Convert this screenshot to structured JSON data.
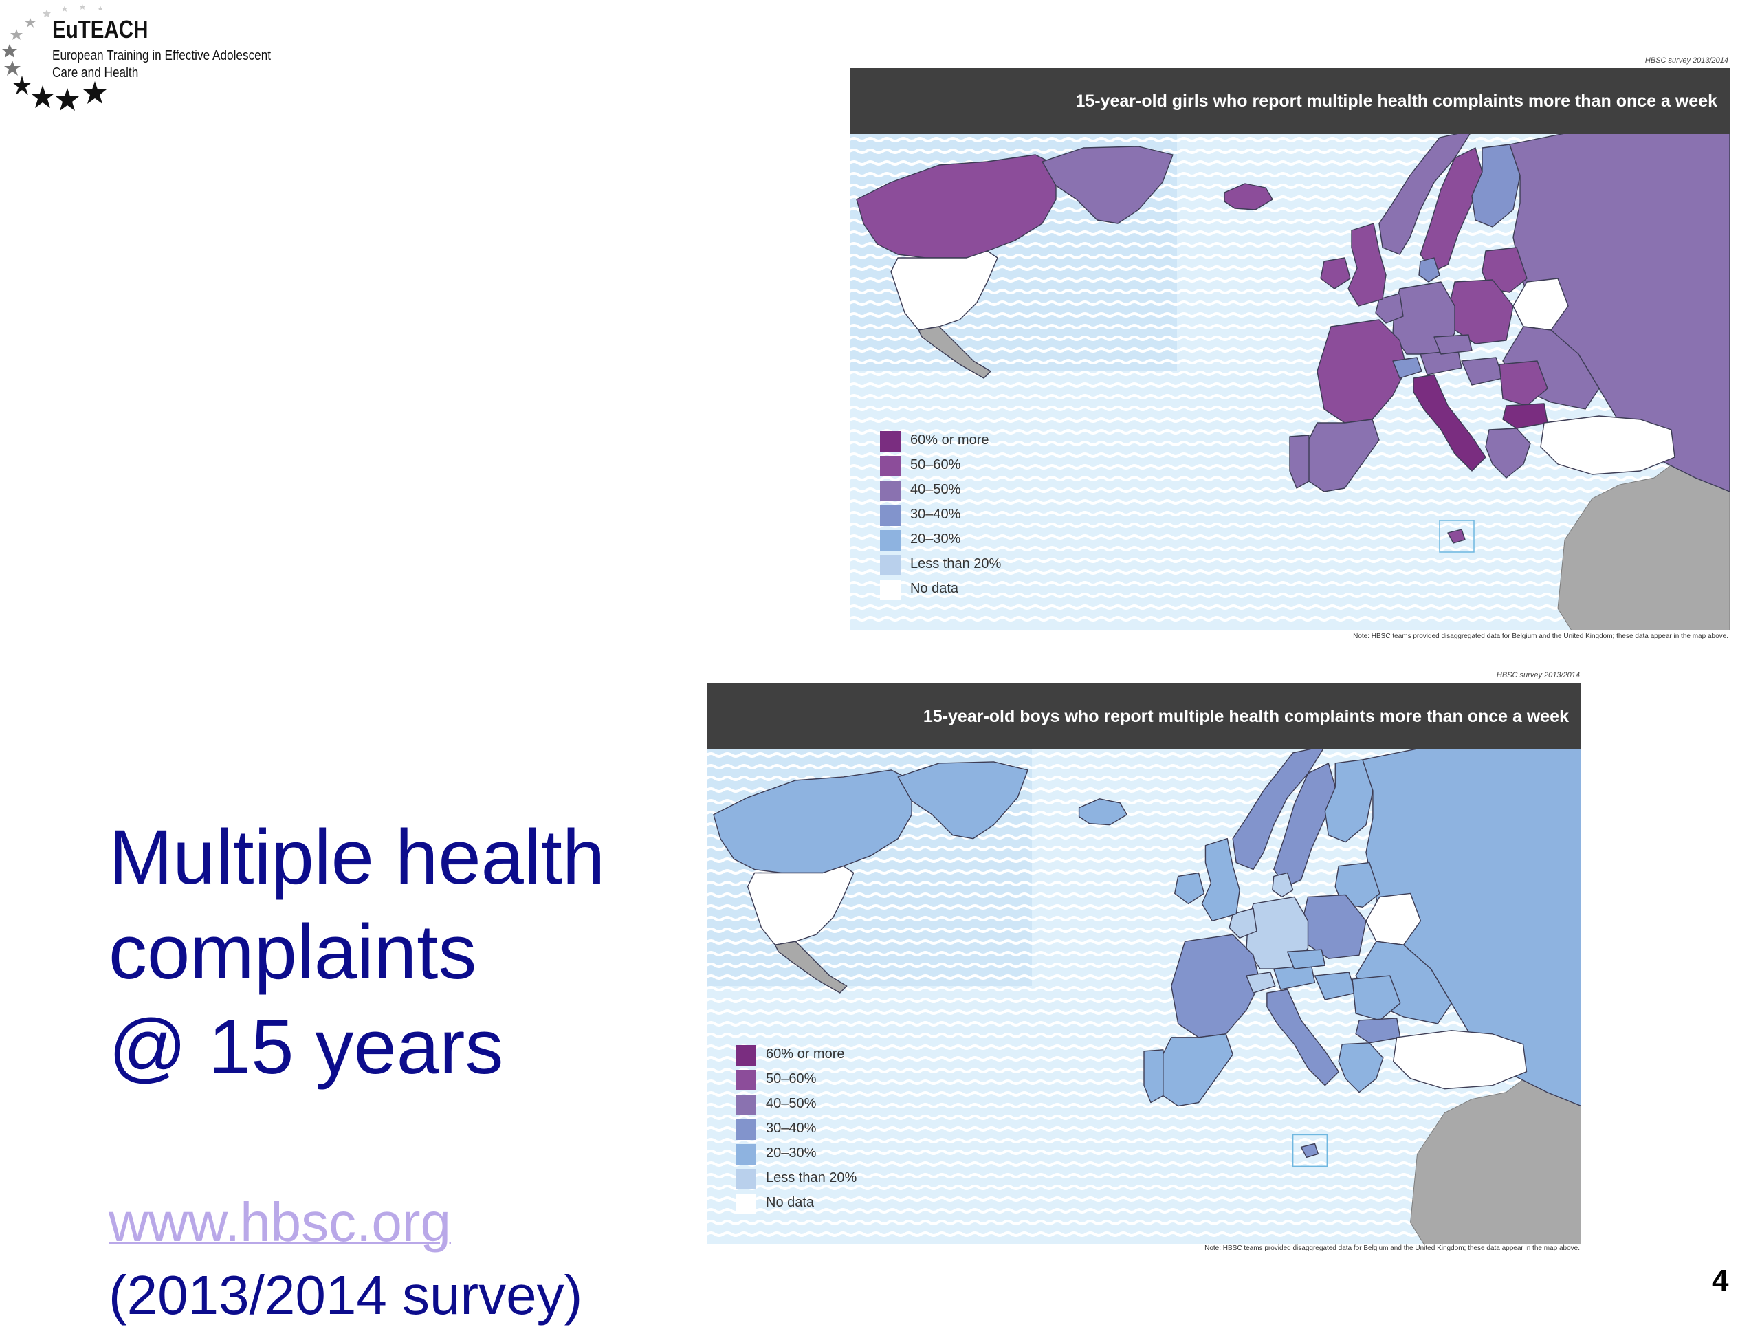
{
  "logo": {
    "name": "EuTEACH",
    "line1": "European Training in Effective Adolescent",
    "line2": "Care and Health"
  },
  "title_lines": [
    "Multiple health",
    "complaints",
    "@ 15 years"
  ],
  "link": "www.hbsc.org",
  "survey_note": "(2013/2014 survey)",
  "page_number": "4",
  "legend_labels": [
    "60% or more",
    "50–60%",
    "40–50%",
    "30–40%",
    "20–30%",
    "Less than 20%",
    "No data"
  ],
  "colors": {
    "60% or more": "#7a2d80",
    "50-60%": "#8c4d9a",
    "40-50%": "#8a72b0",
    "30-40%": "#8294cc",
    "20-30%": "#8eb3e0",
    "Less than 20%": "#b9d0ec",
    "No data": "#ffffff",
    "Outside scope": "#a9a9a9",
    "Sea": "#dff0fb"
  },
  "maps": [
    {
      "source": "HBSC survey 2013/2014",
      "title": "15-year-old girls who report multiple health complaints more than once a week",
      "note": "Note: HBSC teams provided disaggregated data for Belgium and the United Kingdom; these data appear in the map above.",
      "categories": {
        "Canada": "50-60%",
        "Greenland": "40-50%",
        "United States": "No data",
        "Mexico": "Outside scope",
        "Iceland": "50-60%",
        "Norway": "40-50%",
        "Sweden": "50-60%",
        "Finland": "30-40%",
        "Russian Federation": "40-50%",
        "Ireland": "50-60%",
        "United Kingdom": "50-60%",
        "France": "50-60%",
        "Spain": "40-50%",
        "Portugal": "40-50%",
        "Italy": "60% or more",
        "Germany": "40-50%",
        "Poland": "50-60%",
        "Belarus": "No data",
        "Ukraine": "40-50%",
        "Romania": "50-60%",
        "Bulgaria": "60% or more",
        "Greece": "40-50%",
        "Turkey": "No data",
        "Malta": "50-60%",
        "Baltic states": "50-60%",
        "Denmark": "30-40%",
        "Netherlands": "40-50%",
        "Switzerland": "30-40%",
        "Austria": "40-50%",
        "Czech Republic": "40-50%",
        "Hungary": "40-50%"
      }
    },
    {
      "source": "HBSC survey 2013/2014",
      "title": "15-year-old boys who report multiple health complaints more than once a week",
      "note": "Note: HBSC teams provided disaggregated data for Belgium and the United Kingdom; these data appear in the map above.",
      "categories": {
        "Canada": "20-30%",
        "Greenland": "20-30%",
        "United States": "No data",
        "Mexico": "Outside scope",
        "Iceland": "20-30%",
        "Norway": "30-40%",
        "Sweden": "30-40%",
        "Finland": "20-30%",
        "Russian Federation": "20-30%",
        "Ireland": "20-30%",
        "United Kingdom": "20-30%",
        "France": "30-40%",
        "Spain": "20-30%",
        "Portugal": "20-30%",
        "Italy": "30-40%",
        "Germany": "Less than 20%",
        "Poland": "30-40%",
        "Belarus": "No data",
        "Ukraine": "20-30%",
        "Romania": "20-30%",
        "Bulgaria": "30-40%",
        "Greece": "20-30%",
        "Turkey": "No data",
        "Malta": "30-40%",
        "Baltic states": "20-30%",
        "Denmark": "Less than 20%",
        "Netherlands": "Less than 20%",
        "Switzerland": "Less than 20%",
        "Austria": "20-30%",
        "Czech Republic": "20-30%",
        "Hungary": "20-30%"
      }
    }
  ]
}
